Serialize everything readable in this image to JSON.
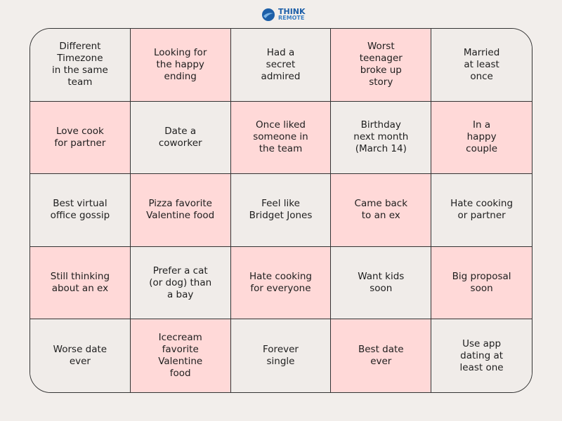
{
  "logo": {
    "line1": "THINK",
    "line2": "REMOTE"
  },
  "grid": {
    "rows": [
      [
        [
          "Different",
          "Timezone",
          "in the same",
          "team"
        ],
        [
          "Looking for",
          "the happy",
          "ending"
        ],
        [
          "Had a",
          "secret",
          "admired"
        ],
        [
          "Worst",
          "teenager",
          "broke up",
          "story"
        ],
        [
          "Married",
          "at least",
          "once"
        ]
      ],
      [
        [
          "Love cook",
          "for partner"
        ],
        [
          "Date a",
          "coworker"
        ],
        [
          "Once liked",
          "someone in",
          "the team"
        ],
        [
          "Birthday",
          "next month",
          "(March 14)"
        ],
        [
          "In a",
          "happy",
          "couple"
        ]
      ],
      [
        [
          "Best virtual",
          "office gossip"
        ],
        [
          "Pizza favorite",
          "Valentine food"
        ],
        [
          "Feel like",
          "Bridget Jones"
        ],
        [
          "Came back",
          "to an ex"
        ],
        [
          "Hate cooking",
          "or partner"
        ]
      ],
      [
        [
          "Still thinking",
          "about an ex"
        ],
        [
          "Prefer a cat",
          "(or dog) than",
          "a bay"
        ],
        [
          "Hate cooking",
          "for everyone"
        ],
        [
          "Want kids",
          "soon"
        ],
        [
          "Big proposal",
          "soon"
        ]
      ],
      [
        [
          "Worse date",
          "ever"
        ],
        [
          "Icecream",
          "favorite",
          "Valentine",
          "food"
        ],
        [
          "Forever",
          "single"
        ],
        [
          "Best date",
          "ever"
        ],
        [
          "Use app",
          "dating at",
          "least one"
        ]
      ]
    ]
  }
}
